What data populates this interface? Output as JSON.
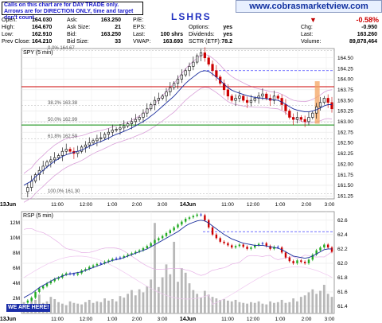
{
  "header": {
    "note_line1": "Calls on this chart are for DAY TRADE only.",
    "note_line2": "Arrows are for DIRECTION ONLY, time and target don't count.",
    "symbol": "LSHRS",
    "website": "www.cobrasmarketview.com",
    "change_pct": "-0.58%",
    "quote_rows": [
      {
        "label": "Open:",
        "value": "164.030",
        "label2": "Ask:",
        "value2": "163.250",
        "label3": "P/E:",
        "value3": ""
      },
      {
        "label": "High:",
        "value": "164.670",
        "label2": "Ask Size:",
        "value2": "21",
        "label3": "EPS:",
        "value3": ""
      },
      {
        "label": "Low:",
        "value": "162.910",
        "label2": "Bid:",
        "value2": "163.250",
        "label3": "Last:",
        "value3": "100 shrs"
      },
      {
        "label": "Prev Close:",
        "value": "164.210",
        "label2": "Bid Size:",
        "value2": "33",
        "label3": "VWAP:",
        "value3": "163.693"
      }
    ],
    "quote_rows_right": [
      {
        "label": "Options:",
        "value": "yes"
      },
      {
        "label": "Dividends:",
        "value": "yes"
      },
      {
        "label": "SCTR (ETF):",
        "value": "78.2"
      }
    ],
    "quote_rows_far": [
      {
        "label": "Chg:",
        "value": "-0.950"
      },
      {
        "label": "Last:",
        "value": "163.260"
      },
      {
        "label": "Volume:",
        "value": "89,878,464"
      }
    ]
  },
  "chart_data": [
    {
      "type": "line",
      "panel_label": "SPY (5 min)",
      "title": "LSHRS",
      "y_ticks": [
        161.25,
        161.5,
        161.75,
        162.0,
        162.25,
        162.5,
        162.75,
        163.0,
        163.25,
        163.5,
        163.75,
        164.0,
        164.25,
        164.5
      ],
      "ylim": [
        161.18,
        164.72
      ],
      "x_ticks": [
        "13Jun",
        "11:00",
        "12:00",
        "1:00",
        "2:00",
        "3:00",
        "14Jun",
        "11:00",
        "12:00",
        "1:00",
        "2:00",
        "3:00"
      ],
      "fib_labels": [
        "0.0% 164.67",
        "38.2% 163.38",
        "50.0% 162.99",
        "61.8% 162.59",
        "100.0% 161.30"
      ],
      "fib_levels": [
        164.67,
        163.38,
        162.99,
        162.59,
        161.3
      ],
      "horizontal_lines": [
        {
          "value": 163.82,
          "color": "#cc0000"
        },
        {
          "value": 162.92,
          "color": "#008800"
        },
        {
          "value": 164.2,
          "color": "#4040ff",
          "style": "dashed"
        }
      ],
      "price": [
        161.35,
        161.45,
        161.6,
        161.75,
        161.85,
        161.95,
        162.05,
        162.1,
        162.15,
        162.2,
        162.3,
        162.35,
        162.3,
        162.25,
        162.3,
        162.4,
        162.45,
        162.5,
        162.55,
        162.6,
        162.62,
        162.7,
        162.75,
        162.8,
        162.82,
        162.85,
        162.9,
        162.95,
        163.0,
        163.05,
        163.1,
        163.2,
        163.3,
        163.4,
        163.5,
        163.55,
        163.6,
        163.7,
        163.8,
        163.9,
        164.0,
        164.1,
        164.2,
        164.3,
        164.4,
        164.55,
        164.62,
        164.5,
        164.35,
        164.2,
        164.05,
        163.9,
        163.75,
        163.6,
        163.5,
        163.55,
        163.6,
        163.5,
        163.45,
        163.5,
        163.55,
        163.6,
        163.65,
        163.55,
        163.5,
        163.6,
        163.55,
        163.4,
        163.25,
        163.1,
        163.05,
        163.1,
        163.05,
        163.0,
        163.1,
        163.2,
        163.35,
        163.45,
        163.55,
        163.45,
        163.3
      ],
      "moving_average": [
        161.5,
        161.55,
        161.6,
        161.7,
        161.78,
        161.85,
        161.93,
        162.0,
        162.07,
        162.12,
        162.18,
        162.22,
        162.25,
        162.28,
        162.3,
        162.33,
        162.37,
        162.42,
        162.46,
        162.5,
        162.53,
        162.57,
        162.61,
        162.66,
        162.7,
        162.73,
        162.77,
        162.81,
        162.85,
        162.9,
        162.95,
        163.0,
        163.06,
        163.13,
        163.2,
        163.28,
        163.36,
        163.44,
        163.52,
        163.6,
        163.7,
        163.8,
        163.9,
        163.98,
        164.05,
        164.12,
        164.18,
        164.2,
        164.18,
        164.12,
        164.05,
        163.97,
        163.88,
        163.8,
        163.74,
        163.7,
        163.67,
        163.64,
        163.61,
        163.59,
        163.57,
        163.56,
        163.55,
        163.54,
        163.52,
        163.51,
        163.5,
        163.46,
        163.41,
        163.35,
        163.3,
        163.27,
        163.25,
        163.23,
        163.23,
        163.25,
        163.28,
        163.32,
        163.37,
        163.4,
        163.4
      ]
    },
    {
      "type": "area",
      "panel_label": "RSP (5 min)",
      "y_ticks_left": [
        "2M",
        "4M",
        "6M",
        "8M",
        "10M",
        "12M"
      ],
      "y_ticks_right": [
        61.4,
        61.6,
        61.8,
        62.0,
        62.2,
        62.4,
        62.6
      ],
      "volume_millions": [
        1.5,
        1.2,
        2.0,
        1.8,
        2.5,
        1.4,
        1.6,
        2.2,
        1.9,
        1.5,
        1.3,
        1.1,
        1.6,
        1.4,
        1.3,
        1.2,
        1.5,
        1.8,
        1.4,
        1.6,
        1.5,
        2.0,
        1.7,
        1.9,
        1.6,
        2.3,
        2.1,
        2.6,
        3.1,
        2.4,
        3.2,
        2.8,
        3.6,
        4.5,
        12.0,
        3.5,
        4.8,
        6.5,
        5.2,
        9.5,
        4.2,
        6.0,
        5.4,
        4.0,
        3.1,
        2.6,
        2.1,
        3.0,
        2.5,
        2.2,
        2.0,
        1.8,
        1.9,
        1.7,
        1.6,
        1.8,
        1.5,
        1.4,
        1.3,
        1.5,
        1.4,
        1.6,
        1.3,
        1.2,
        1.6,
        1.4,
        1.5,
        1.8,
        1.4,
        1.5,
        2.0,
        1.6,
        2.2,
        2.4,
        2.8,
        3.2,
        2.6,
        3.0,
        3.8,
        2.6,
        2.2
      ],
      "price": [
        61.45,
        61.48,
        61.52,
        61.6,
        61.65,
        61.68,
        61.72,
        61.75,
        61.78,
        61.8,
        61.84,
        61.86,
        61.85,
        61.84,
        61.86,
        61.9,
        61.92,
        61.95,
        61.97,
        61.99,
        62.0,
        62.02,
        62.04,
        62.06,
        62.07,
        62.08,
        62.1,
        62.12,
        62.14,
        62.16,
        62.18,
        62.21,
        62.24,
        62.28,
        62.32,
        62.35,
        62.38,
        62.42,
        62.46,
        62.5,
        62.54,
        62.58,
        62.62,
        62.64,
        62.66,
        62.68,
        62.67,
        62.6,
        62.5,
        62.4,
        62.35,
        62.3,
        62.28,
        62.25,
        62.22,
        62.24,
        62.26,
        62.23,
        62.2,
        62.22,
        62.25,
        62.27,
        62.28,
        62.24,
        62.2,
        62.23,
        62.22,
        62.15,
        62.08,
        62.03,
        62.0,
        62.04,
        62.02,
        62.0,
        62.05,
        62.12,
        62.18,
        62.22,
        62.26,
        62.22,
        62.16
      ],
      "moving_average": [
        61.52,
        61.55,
        61.58,
        61.62,
        61.66,
        61.69,
        61.72,
        61.75,
        61.78,
        61.8,
        61.82,
        61.84,
        61.85,
        61.86,
        61.87,
        61.88,
        61.9,
        61.92,
        61.94,
        61.96,
        61.98,
        62.0,
        62.02,
        62.04,
        62.05,
        62.06,
        62.08,
        62.1,
        62.12,
        62.14,
        62.16,
        62.18,
        62.2,
        62.23,
        62.26,
        62.29,
        62.32,
        62.35,
        62.38,
        62.41,
        62.44,
        62.48,
        62.52,
        62.55,
        62.57,
        62.59,
        62.6,
        62.59,
        62.56,
        62.52,
        62.48,
        62.44,
        62.4,
        62.37,
        62.34,
        62.32,
        62.3,
        62.28,
        62.27,
        62.26,
        62.25,
        62.25,
        62.25,
        62.24,
        62.23,
        62.22,
        62.21,
        62.19,
        62.16,
        62.13,
        62.1,
        62.09,
        62.08,
        62.07,
        62.08,
        62.1,
        62.13,
        62.16,
        62.19,
        62.2,
        62.2
      ],
      "dashed_line": 62.44,
      "badge": "WE ARE HERE!"
    }
  ],
  "colors": {
    "up_candle": "#000000",
    "down_candle": "#cc0000",
    "ma_line": "#1a2d9c",
    "bollinger": "#d9a0d9",
    "volume": "#b8b8b8",
    "highlight": "#f4a460",
    "rsp_up": "#22aa22",
    "rsp_down": "#cc0000",
    "rsp_flat": "#2233cc"
  }
}
